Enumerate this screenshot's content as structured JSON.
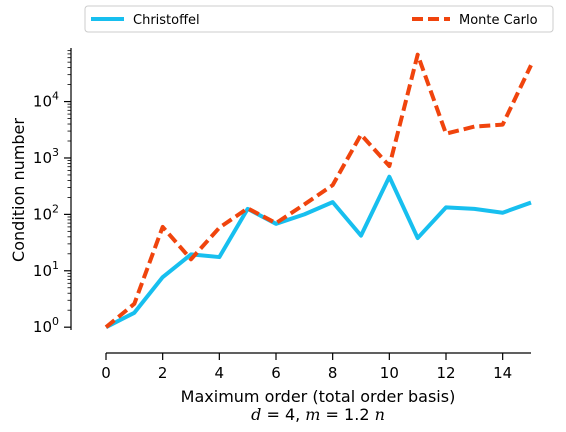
{
  "chart_data": {
    "type": "line",
    "xlabel": "Maximum order (total order basis)",
    "subtitle": "d = 4, m = 1.2 n",
    "ylabel": "Condition number",
    "xlim": [
      0,
      15
    ],
    "ylim_log10": [
      -0.05,
      4.95
    ],
    "y_scale": "log",
    "x_ticks": [
      0,
      2,
      4,
      6,
      8,
      10,
      12,
      14
    ],
    "x_tick_labels": [
      "0",
      "2",
      "4",
      "6",
      "8",
      "10",
      "12",
      "14"
    ],
    "y_ticks": [
      1,
      10,
      100,
      1000,
      10000
    ],
    "y_tick_labels": [
      {
        "base": "10",
        "exp": "0"
      },
      {
        "base": "10",
        "exp": "1"
      },
      {
        "base": "10",
        "exp": "2"
      },
      {
        "base": "10",
        "exp": "3"
      },
      {
        "base": "10",
        "exp": "4"
      }
    ],
    "x": [
      0,
      1,
      2,
      3,
      4,
      5,
      6,
      7,
      8,
      9,
      10,
      11,
      12,
      13,
      14,
      15
    ],
    "legend_position": "top, outside",
    "series": [
      {
        "name": "Christoffel",
        "color": "#17bfef",
        "style": "solid",
        "values": [
          1.0,
          1.8,
          7.7,
          19.5,
          17.5,
          125,
          68,
          100,
          165,
          42,
          465,
          38,
          133,
          125,
          107,
          162
        ]
      },
      {
        "name": "Monte Carlo",
        "color": "#f0440d",
        "style": "dashed",
        "values": [
          1.0,
          2.6,
          60,
          16,
          58,
          128,
          70,
          150,
          330,
          2600,
          720,
          68000,
          2700,
          3600,
          3900,
          44000
        ]
      }
    ]
  }
}
